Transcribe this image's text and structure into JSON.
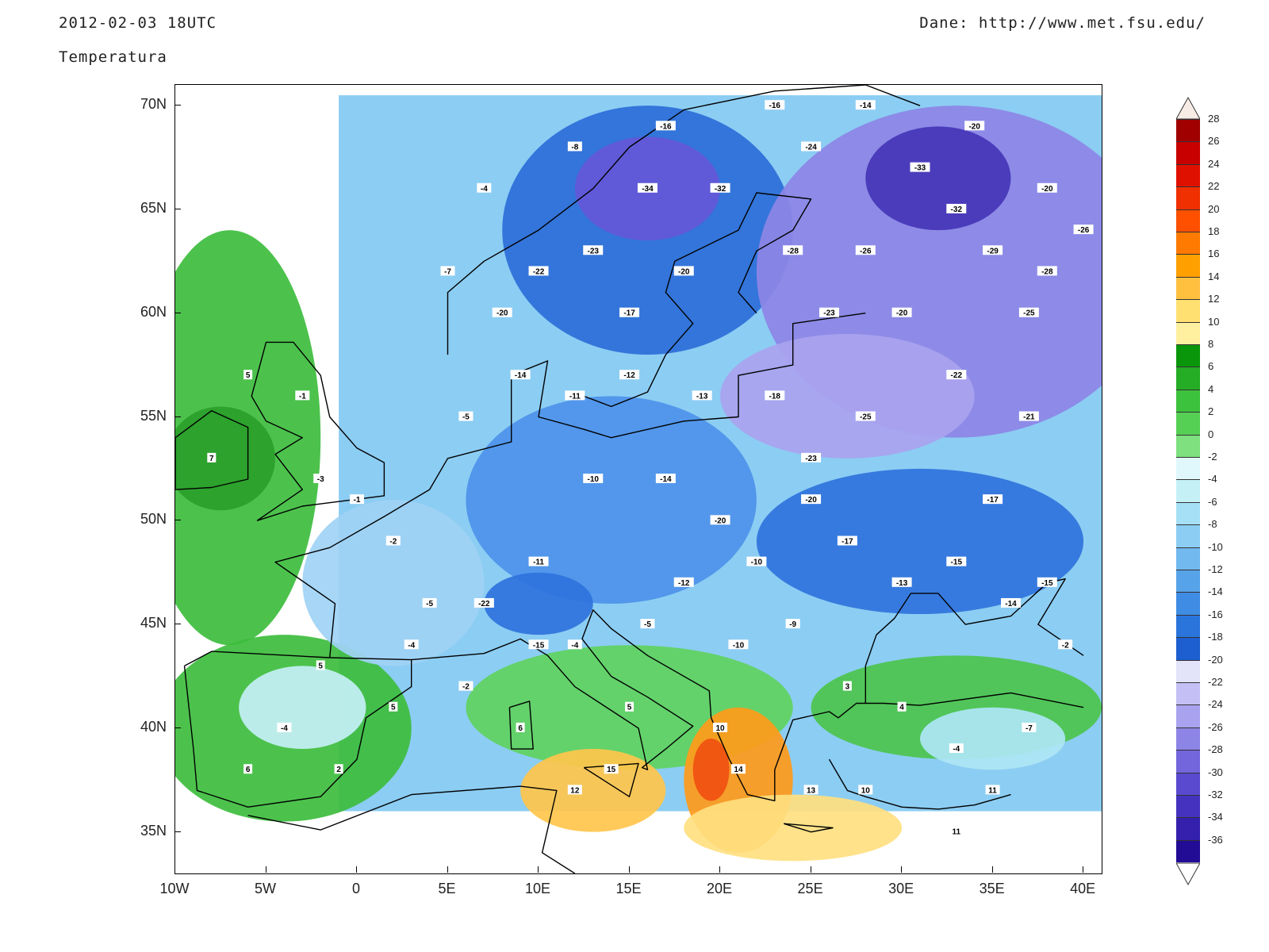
{
  "header": {
    "date": "2012-02-03 18UTC",
    "variable": "Temperatura",
    "source": "Dane: http://www.met.fsu.edu/"
  },
  "map": {
    "lon_range": [
      -10,
      41
    ],
    "lat_range": [
      33,
      71
    ],
    "lat_labels": [
      "70N",
      "65N",
      "60N",
      "55N",
      "50N",
      "45N",
      "40N",
      "35N"
    ],
    "lon_labels": [
      "10W",
      "5W",
      "0",
      "5E",
      "10E",
      "15E",
      "20E",
      "25E",
      "30E",
      "35E",
      "40E"
    ],
    "lat_values": [
      70,
      65,
      60,
      55,
      50,
      45,
      40,
      35
    ],
    "lon_values": [
      -10,
      -5,
      0,
      5,
      10,
      15,
      20,
      25,
      30,
      35,
      40
    ],
    "regions": [
      {
        "name": "atlantic-green-west",
        "lon": -7,
        "lat": 54,
        "rx": 5,
        "ry": 10,
        "color": "#3dbd3d"
      },
      {
        "name": "ireland-green",
        "lon": -7.5,
        "lat": 53,
        "rx": 3,
        "ry": 2.5,
        "color": "#2aa02a"
      },
      {
        "name": "iberia-green",
        "lon": -4,
        "lat": 40,
        "rx": 7,
        "ry": 4.5,
        "color": "#3dbd3d"
      },
      {
        "name": "iberia-cold",
        "lon": -3,
        "lat": 41,
        "rx": 3.5,
        "ry": 2,
        "color": "#c4f0f6"
      },
      {
        "name": "med-green",
        "lon": 15,
        "lat": 41,
        "rx": 9,
        "ry": 3,
        "color": "#5fd35f"
      },
      {
        "name": "italy-warm",
        "lon": 13,
        "lat": 37,
        "rx": 4,
        "ry": 2,
        "color": "#ffc64c"
      },
      {
        "name": "ionian-warm",
        "lon": 21,
        "lat": 37.5,
        "rx": 3,
        "ry": 3.5,
        "color": "#ff9a1a"
      },
      {
        "name": "ionian-hot",
        "lon": 19.5,
        "lat": 38,
        "rx": 1,
        "ry": 1.5,
        "color": "#f05010"
      },
      {
        "name": "libya-yellow",
        "lon": 24,
        "lat": 35.2,
        "rx": 6,
        "ry": 1.6,
        "color": "#ffe080"
      },
      {
        "name": "turkey-green",
        "lon": 33,
        "lat": 41,
        "rx": 8,
        "ry": 2.5,
        "color": "#4cc44c"
      },
      {
        "name": "turkey-cold",
        "lon": 35,
        "lat": 39.5,
        "rx": 4,
        "ry": 1.5,
        "color": "#aee6f5"
      },
      {
        "name": "scandinavia-blue",
        "lon": 16,
        "lat": 64,
        "rx": 8,
        "ry": 6,
        "color": "#2b6ed8"
      },
      {
        "name": "sweden-purple",
        "lon": 16,
        "lat": 66,
        "rx": 4,
        "ry": 2.5,
        "color": "#6458d8"
      },
      {
        "name": "russia-purple",
        "lon": 33,
        "lat": 62,
        "rx": 11,
        "ry": 8,
        "color": "#8d85e6"
      },
      {
        "name": "karelia-deep",
        "lon": 32,
        "lat": 66.5,
        "rx": 4,
        "ry": 2.5,
        "color": "#4535b8"
      },
      {
        "name": "baltic-purple",
        "lon": 27,
        "lat": 56,
        "rx": 7,
        "ry": 3,
        "color": "#a9a3ef"
      },
      {
        "name": "central-blue",
        "lon": 14,
        "lat": 51,
        "rx": 8,
        "ry": 5,
        "color": "#4d92ea"
      },
      {
        "name": "ukraine-blue",
        "lon": 31,
        "lat": 49,
        "rx": 9,
        "ry": 3.5,
        "color": "#2f73dd"
      },
      {
        "name": "france-lightblue",
        "lon": 2,
        "lat": 47,
        "rx": 5,
        "ry": 4,
        "color": "#9fd3f5"
      },
      {
        "name": "alps-blue",
        "lon": 10,
        "lat": 46,
        "rx": 3,
        "ry": 1.5,
        "color": "#2f73dd"
      }
    ],
    "station_values": [
      {
        "lon": -8,
        "lat": 53,
        "v": "7"
      },
      {
        "lon": -6,
        "lat": 57,
        "v": "5"
      },
      {
        "lon": -3,
        "lat": 56,
        "v": "-1"
      },
      {
        "lon": -2,
        "lat": 52,
        "v": "-3"
      },
      {
        "lon": 0,
        "lat": 51,
        "v": "-1"
      },
      {
        "lon": 2,
        "lat": 49,
        "v": "-2"
      },
      {
        "lon": 4,
        "lat": 46,
        "v": "-5"
      },
      {
        "lon": 7,
        "lat": 46,
        "v": "-22"
      },
      {
        "lon": 10,
        "lat": 48,
        "v": "-11"
      },
      {
        "lon": 13,
        "lat": 52,
        "v": "-10"
      },
      {
        "lon": 17,
        "lat": 52,
        "v": "-14"
      },
      {
        "lon": 20,
        "lat": 50,
        "v": "-20"
      },
      {
        "lon": 25,
        "lat": 53,
        "v": "-23"
      },
      {
        "lon": 28,
        "lat": 55,
        "v": "-25"
      },
      {
        "lon": 33,
        "lat": 57,
        "v": "-22"
      },
      {
        "lon": 37,
        "lat": 55,
        "v": "-21"
      },
      {
        "lon": 35,
        "lat": 51,
        "v": "-17"
      },
      {
        "lon": 30,
        "lat": 47,
        "v": "-13"
      },
      {
        "lon": 24,
        "lat": 45,
        "v": "-9"
      },
      {
        "lon": 21,
        "lat": 44,
        "v": "-10"
      },
      {
        "lon": 16,
        "lat": 45,
        "v": "-5"
      },
      {
        "lon": 12,
        "lat": 44,
        "v": "-4"
      },
      {
        "lon": 10,
        "lat": 44,
        "v": "-15"
      },
      {
        "lon": 15,
        "lat": 41,
        "v": "5"
      },
      {
        "lon": 14,
        "lat": 38,
        "v": "15"
      },
      {
        "lon": 12,
        "lat": 37,
        "v": "12"
      },
      {
        "lon": 20,
        "lat": 40,
        "v": "10"
      },
      {
        "lon": 21,
        "lat": 38,
        "v": "14"
      },
      {
        "lon": 25,
        "lat": 37,
        "v": "13"
      },
      {
        "lon": 28,
        "lat": 37,
        "v": "10"
      },
      {
        "lon": 33,
        "lat": 35,
        "v": "11"
      },
      {
        "lon": 35,
        "lat": 37,
        "v": "11"
      },
      {
        "lon": 37,
        "lat": 40,
        "v": "-7"
      },
      {
        "lon": 33,
        "lat": 39,
        "v": "-4"
      },
      {
        "lon": 30,
        "lat": 41,
        "v": "4"
      },
      {
        "lon": 27,
        "lat": 42,
        "v": "3"
      },
      {
        "lon": -4,
        "lat": 40,
        "v": "-4"
      },
      {
        "lon": -6,
        "lat": 38,
        "v": "6"
      },
      {
        "lon": -1,
        "lat": 38,
        "v": "2"
      },
      {
        "lon": 2,
        "lat": 41,
        "v": "5"
      },
      {
        "lon": 9,
        "lat": 40,
        "v": "6"
      },
      {
        "lon": 15,
        "lat": 60,
        "v": "-17"
      },
      {
        "lon": 18,
        "lat": 62,
        "v": "-20"
      },
      {
        "lon": 13,
        "lat": 63,
        "v": "-23"
      },
      {
        "lon": 20,
        "lat": 66,
        "v": "-32"
      },
      {
        "lon": 16,
        "lat": 66,
        "v": "-34"
      },
      {
        "lon": 25,
        "lat": 68,
        "v": "-24"
      },
      {
        "lon": 31,
        "lat": 67,
        "v": "-33"
      },
      {
        "lon": 33,
        "lat": 65,
        "v": "-32"
      },
      {
        "lon": 35,
        "lat": 63,
        "v": "-29"
      },
      {
        "lon": 38,
        "lat": 62,
        "v": "-28"
      },
      {
        "lon": 40,
        "lat": 64,
        "v": "-26"
      },
      {
        "lon": 28,
        "lat": 63,
        "v": "-26"
      },
      {
        "lon": 24,
        "lat": 63,
        "v": "-28"
      },
      {
        "lon": 26,
        "lat": 60,
        "v": "-23"
      },
      {
        "lon": 30,
        "lat": 60,
        "v": "-20"
      },
      {
        "lon": 37,
        "lat": 60,
        "v": "-25"
      },
      {
        "lon": 8,
        "lat": 60,
        "v": "-20"
      },
      {
        "lon": 10,
        "lat": 62,
        "v": "-22"
      },
      {
        "lon": 5,
        "lat": 62,
        "v": "-7"
      },
      {
        "lon": 7,
        "lat": 66,
        "v": "-4"
      },
      {
        "lon": 12,
        "lat": 68,
        "v": "-8"
      },
      {
        "lon": 17,
        "lat": 69,
        "v": "-16"
      },
      {
        "lon": 23,
        "lat": 70,
        "v": "-16"
      },
      {
        "lon": 28,
        "lat": 70,
        "v": "-14"
      },
      {
        "lon": 34,
        "lat": 69,
        "v": "-20"
      },
      {
        "lon": 38,
        "lat": 66,
        "v": "-20"
      },
      {
        "lon": 6,
        "lat": 55,
        "v": "-5"
      },
      {
        "lon": 9,
        "lat": 57,
        "v": "-14"
      },
      {
        "lon": 12,
        "lat": 56,
        "v": "-11"
      },
      {
        "lon": 15,
        "lat": 57,
        "v": "-12"
      },
      {
        "lon": 19,
        "lat": 56,
        "v": "-13"
      },
      {
        "lon": 23,
        "lat": 56,
        "v": "-18"
      },
      {
        "lon": 38,
        "lat": 47,
        "v": "-15"
      },
      {
        "lon": 39,
        "lat": 44,
        "v": "-2"
      },
      {
        "lon": 36,
        "lat": 46,
        "v": "-14"
      },
      {
        "lon": 33,
        "lat": 48,
        "v": "-15"
      },
      {
        "lon": 27,
        "lat": 49,
        "v": "-17"
      },
      {
        "lon": 25,
        "lat": 51,
        "v": "-20"
      },
      {
        "lon": 22,
        "lat": 48,
        "v": "-10"
      },
      {
        "lon": 18,
        "lat": 47,
        "v": "-12"
      },
      {
        "lon": 6,
        "lat": 42,
        "v": "-2"
      },
      {
        "lon": -2,
        "lat": 43,
        "v": "5"
      },
      {
        "lon": 3,
        "lat": 44,
        "v": "-4"
      }
    ],
    "land_color": "#000000"
  },
  "colorbar": {
    "labels": [
      "28",
      "26",
      "24",
      "22",
      "20",
      "18",
      "16",
      "14",
      "12",
      "10",
      "8",
      "6",
      "4",
      "2",
      "0",
      "-2",
      "-4",
      "-6",
      "-8",
      "-10",
      "-12",
      "-14",
      "-16",
      "-18",
      "-20",
      "-22",
      "-24",
      "-26",
      "-28",
      "-30",
      "-32",
      "-34",
      "-36"
    ],
    "colors": [
      "#a00000",
      "#c80000",
      "#e01000",
      "#f03000",
      "#ff5000",
      "#ff7a00",
      "#ffa000",
      "#ffc040",
      "#ffe070",
      "#fff0a0",
      "#0a960a",
      "#25ad25",
      "#3dc23d",
      "#55d055",
      "#7ee07e",
      "#e0f8fb",
      "#c4f0f6",
      "#a6e0f6",
      "#8ccdf3",
      "#72b9ef",
      "#57a3ea",
      "#3f8ce4",
      "#2a75dc",
      "#1d5fd0",
      "#e3e3fa",
      "#c4c0f5",
      "#a9a3ef",
      "#8d85e6",
      "#7366dc",
      "#5a4acf",
      "#4533bf",
      "#3420ad",
      "#220c96"
    ],
    "top_arrow_color": "#f7ece6",
    "bottom_arrow_color": "#ffffff"
  }
}
